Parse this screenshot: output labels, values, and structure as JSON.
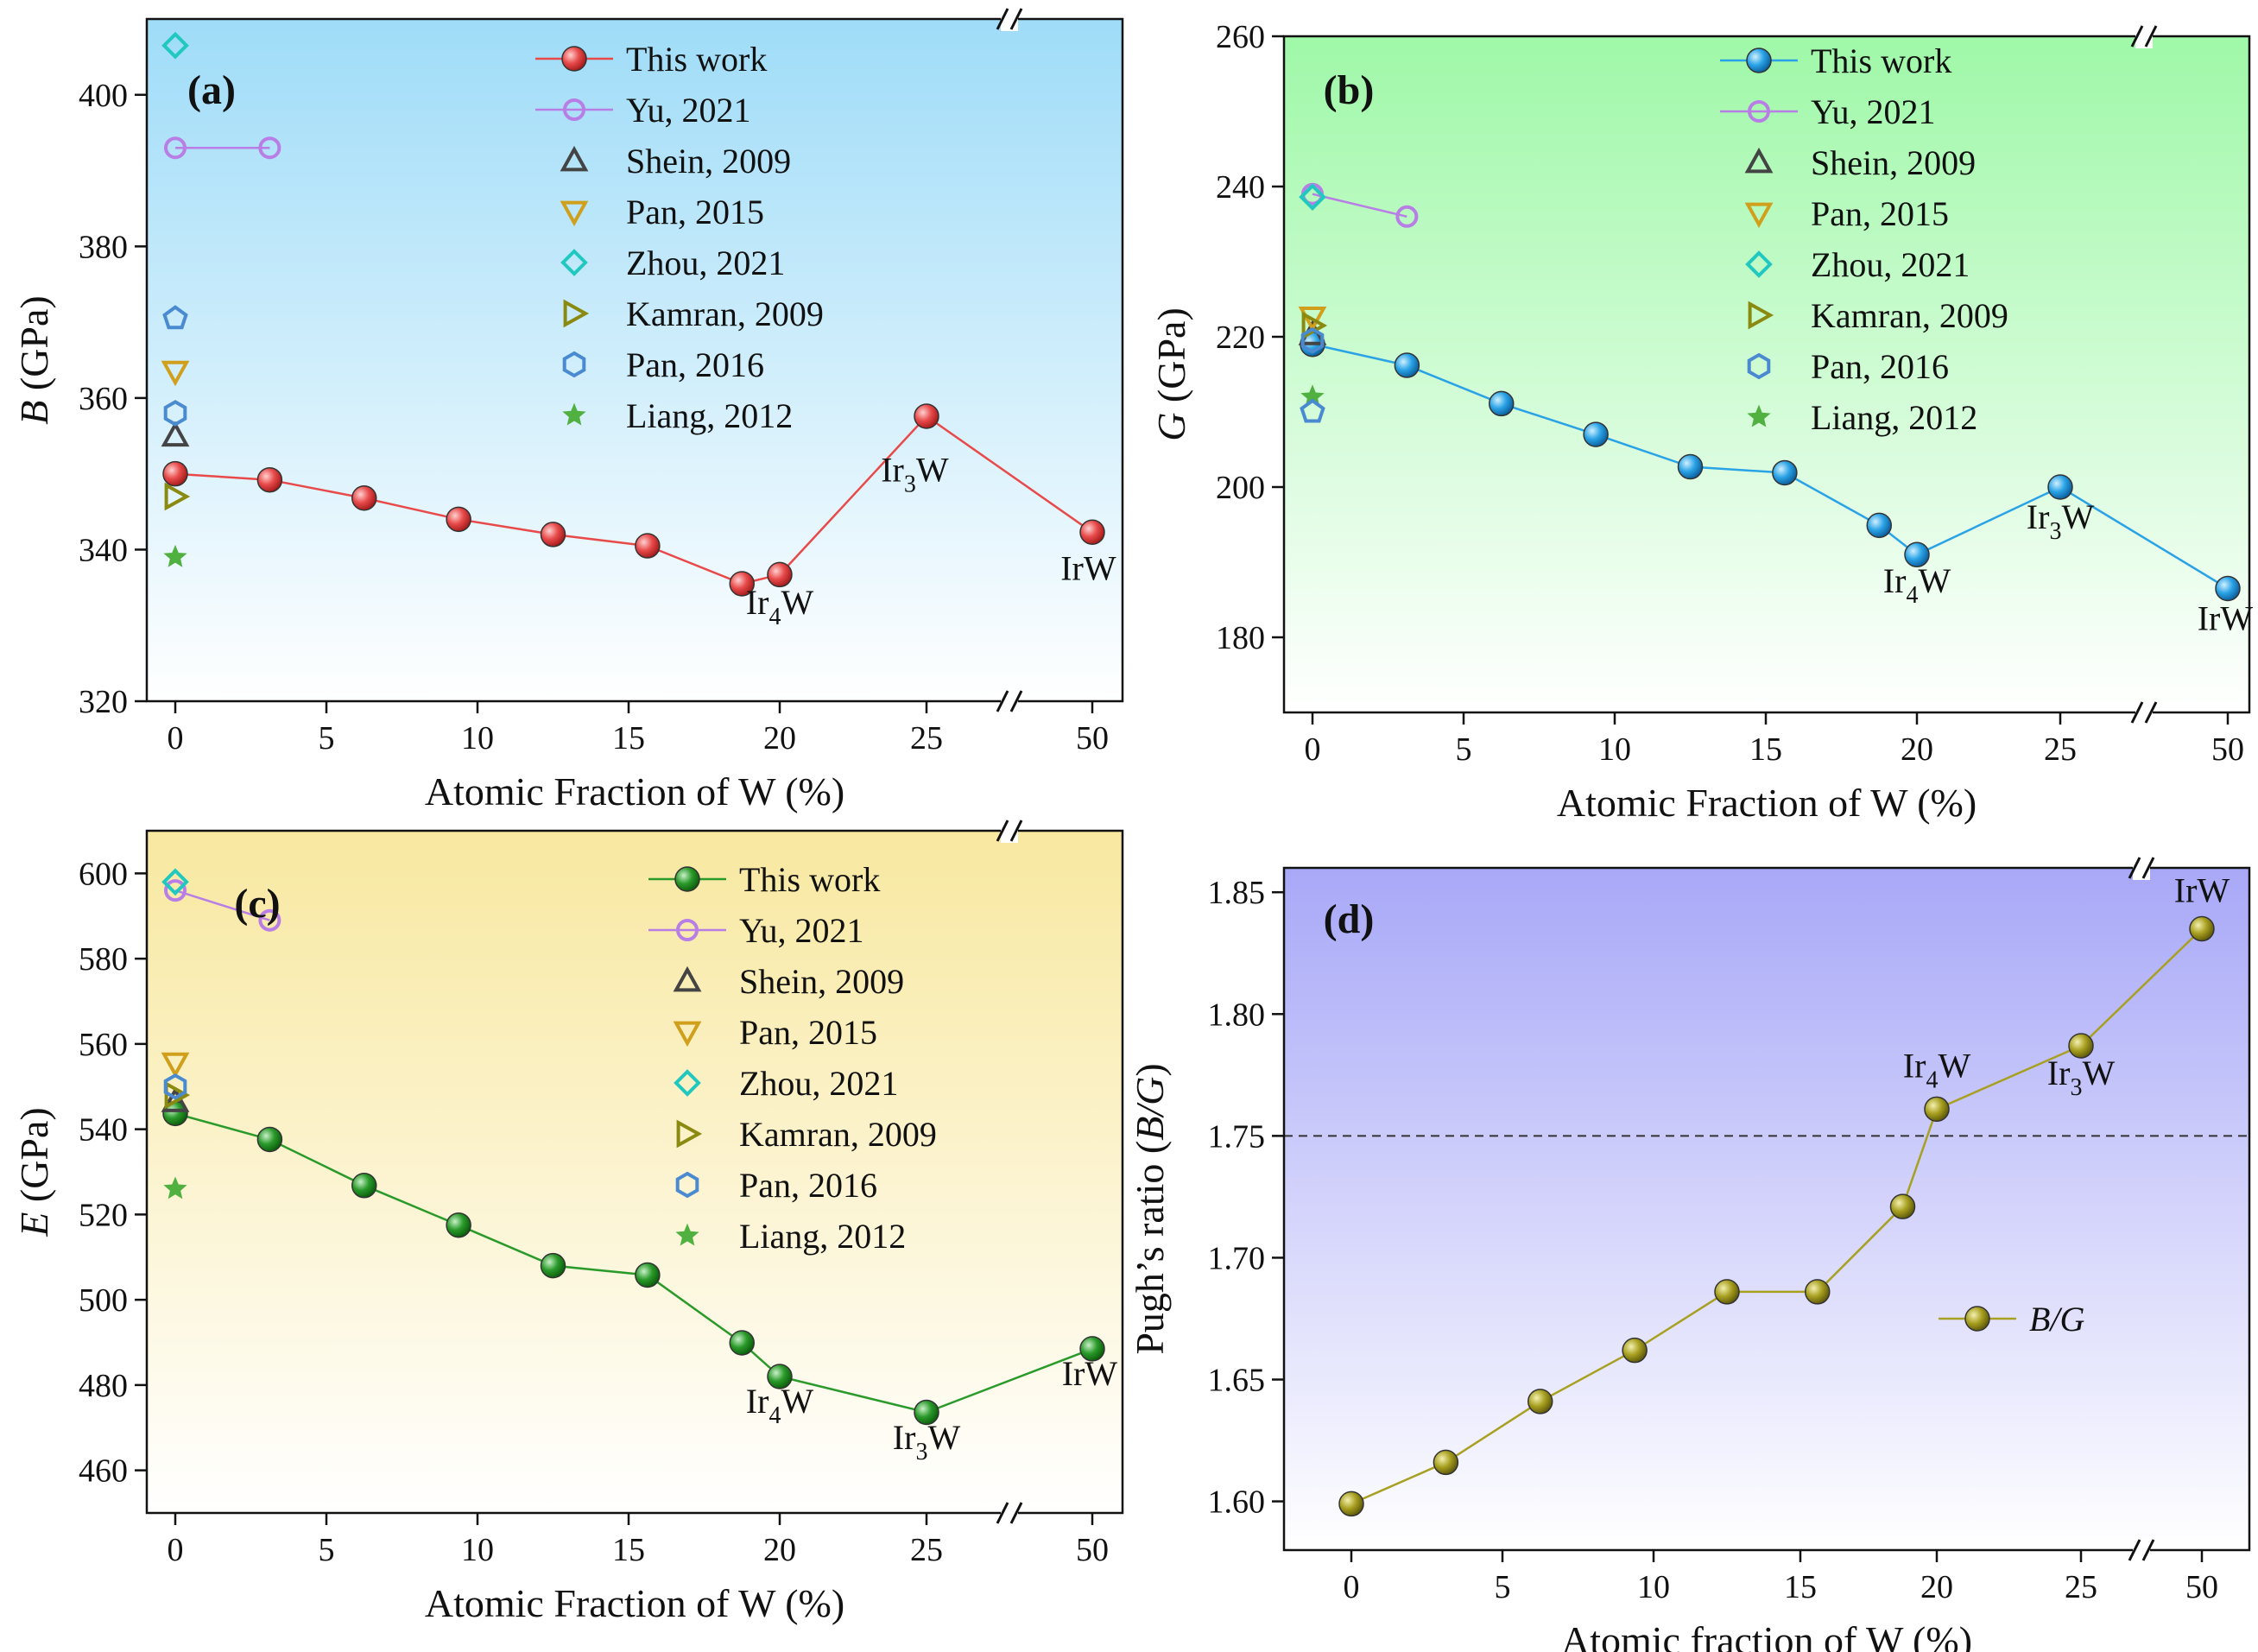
{
  "colors": {
    "work_a": "#e84a4a",
    "work_b": "#2aa3e6",
    "work_c": "#2a9a2a",
    "work_d": "#a8a020",
    "yu": "#b87ee6",
    "shein": "#444444",
    "pan2015": "#d0a01c",
    "zhou": "#20c8c0",
    "kamran": "#8a8a10",
    "pan2016": "#4a8ad0",
    "liang": "#50b040",
    "bg_a_top": "#9fdcf8",
    "bg_b_top": "#9ff8a8",
    "bg_c_top": "#f8e8a0",
    "bg_d_top": "#a8a8f8"
  },
  "chart_data": [
    {
      "id": "a",
      "type": "line",
      "panel_label": "(a)",
      "ylabel_sym": "B",
      "ylabel_unit": " (GPa)",
      "xlabel": "Atomic Fraction of W (%)",
      "x_ticks": [
        "0",
        "5",
        "10",
        "15",
        "20",
        "25",
        "50"
      ],
      "y_ticks": [
        "320",
        "340",
        "360",
        "380",
        "400"
      ],
      "ylim": [
        320,
        410
      ],
      "series": [
        {
          "name": "This work",
          "marker": "sphere",
          "x": [
            0,
            3.125,
            6.25,
            9.375,
            12.5,
            15.625,
            18.75,
            20,
            25,
            50
          ],
          "y": [
            350,
            349.2,
            346.8,
            344,
            342,
            340.5,
            335.5,
            336.7,
            357.6,
            342.3
          ]
        },
        {
          "name": "Yu, 2021",
          "marker": "circle",
          "x": [
            0,
            3.125
          ],
          "y": [
            393,
            393
          ]
        },
        {
          "name": "Shein, 2009",
          "marker": "triangle-up",
          "x": [
            0
          ],
          "y": [
            355
          ]
        },
        {
          "name": "Pan, 2015",
          "marker": "triangle-down",
          "x": [
            0
          ],
          "y": [
            363.5
          ]
        },
        {
          "name": "Zhou, 2021",
          "marker": "diamond",
          "x": [
            0
          ],
          "y": [
            406.5
          ]
        },
        {
          "name": "Kamran, 2009",
          "marker": "triangle-right",
          "x": [
            0
          ],
          "y": [
            347
          ]
        },
        {
          "name": "Pan, 2016",
          "marker": "hexagon",
          "x": [
            0
          ],
          "y": [
            358
          ]
        },
        {
          "name": "Liang, 2012",
          "marker": "star",
          "x": [
            0
          ],
          "y": [
            339
          ]
        },
        {
          "name": "",
          "marker": "pentagon",
          "x": [
            0
          ],
          "y": [
            370.5
          ]
        }
      ],
      "annotations": [
        {
          "main": "Ir",
          "sub": "4",
          "tail": "W",
          "x": 20,
          "y": 331.5
        },
        {
          "main": "Ir",
          "sub": "3",
          "tail": "W",
          "x": 24.6,
          "y": 349
        },
        {
          "main": "IrW",
          "sub": "",
          "tail": "",
          "x": 49.4,
          "y": 336
        }
      ]
    },
    {
      "id": "b",
      "type": "line",
      "panel_label": "(b)",
      "ylabel_sym": "G",
      "ylabel_unit": " (GPa)",
      "xlabel": "Atomic Fraction of W (%)",
      "x_ticks": [
        "0",
        "5",
        "10",
        "15",
        "20",
        "25",
        "50"
      ],
      "y_ticks": [
        "180",
        "200",
        "220",
        "240",
        "260"
      ],
      "ylim": [
        170,
        260
      ],
      "series": [
        {
          "name": "This work",
          "marker": "sphere",
          "x": [
            0,
            3.125,
            6.25,
            9.375,
            12.5,
            15.625,
            18.75,
            20,
            25,
            50
          ],
          "y": [
            219,
            216.2,
            211.1,
            207,
            202.7,
            201.9,
            194.9,
            191,
            200,
            186.5
          ]
        },
        {
          "name": "Yu, 2021",
          "marker": "circle",
          "x": [
            0,
            3.125
          ],
          "y": [
            239,
            236
          ]
        },
        {
          "name": "Shein, 2009",
          "marker": "triangle-up",
          "x": [
            0
          ],
          "y": [
            220.3
          ]
        },
        {
          "name": "Pan, 2015",
          "marker": "triangle-down",
          "x": [
            0
          ],
          "y": [
            222.6
          ]
        },
        {
          "name": "Zhou, 2021",
          "marker": "diamond",
          "x": [
            0
          ],
          "y": [
            238.6
          ]
        },
        {
          "name": "Kamran, 2009",
          "marker": "triangle-right",
          "x": [
            0
          ],
          "y": [
            221.5
          ]
        },
        {
          "name": "Pan, 2016",
          "marker": "hexagon",
          "x": [
            0
          ],
          "y": [
            219.5
          ]
        },
        {
          "name": "Liang, 2012",
          "marker": "star",
          "x": [
            0
          ],
          "y": [
            212
          ]
        },
        {
          "name": "",
          "marker": "pentagon",
          "x": [
            0
          ],
          "y": [
            210
          ]
        }
      ],
      "annotations": [
        {
          "main": "Ir",
          "sub": "4",
          "tail": "W",
          "x": 20,
          "y": 186
        },
        {
          "main": "Ir",
          "sub": "3",
          "tail": "W",
          "x": 25,
          "y": 194.5
        },
        {
          "main": "IrW",
          "sub": "",
          "tail": "",
          "x": 49.6,
          "y": 181
        }
      ]
    },
    {
      "id": "c",
      "type": "line",
      "panel_label": "(c)",
      "ylabel_sym": "E",
      "ylabel_unit": " (GPa)",
      "xlabel": "Atomic Fraction of W (%)",
      "x_ticks": [
        "0",
        "5",
        "10",
        "15",
        "20",
        "25",
        "50"
      ],
      "y_ticks": [
        "460",
        "480",
        "500",
        "520",
        "540",
        "560",
        "580",
        "600"
      ],
      "ylim": [
        450,
        610
      ],
      "series": [
        {
          "name": "This work",
          "marker": "sphere",
          "x": [
            0,
            3.125,
            6.25,
            9.375,
            12.5,
            15.625,
            18.75,
            20,
            25,
            50
          ],
          "y": [
            543.7,
            537.6,
            526.8,
            517.5,
            508,
            505.8,
            489.9,
            482,
            473.6,
            488.5
          ]
        },
        {
          "name": "Yu, 2021",
          "marker": "circle",
          "x": [
            0,
            3.125
          ],
          "y": [
            596,
            589
          ]
        },
        {
          "name": "Shein, 2009",
          "marker": "triangle-up",
          "x": [
            0
          ],
          "y": [
            546.5
          ]
        },
        {
          "name": "Pan, 2015",
          "marker": "triangle-down",
          "x": [
            0
          ],
          "y": [
            555.5
          ]
        },
        {
          "name": "Zhou, 2021",
          "marker": "diamond",
          "x": [
            0
          ],
          "y": [
            598
          ]
        },
        {
          "name": "Kamran, 2009",
          "marker": "triangle-right",
          "x": [
            0
          ],
          "y": [
            548
          ]
        },
        {
          "name": "Pan, 2016",
          "marker": "hexagon",
          "x": [
            0
          ],
          "y": [
            550
          ]
        },
        {
          "name": "Liang, 2012",
          "marker": "star",
          "x": [
            0
          ],
          "y": [
            526
          ]
        }
      ],
      "annotations": [
        {
          "main": "Ir",
          "sub": "4",
          "tail": "W",
          "x": 20,
          "y": 473.5
        },
        {
          "main": "Ir",
          "sub": "3",
          "tail": "W",
          "x": 25,
          "y": 465
        },
        {
          "main": "IrW",
          "sub": "",
          "tail": "",
          "x": 49.6,
          "y": 480
        }
      ]
    },
    {
      "id": "d",
      "type": "line",
      "panel_label": "(d)",
      "ylabel_pre": "Pugh’s ratio (",
      "ylabel_sym": "B/G",
      "ylabel_unit": ")",
      "xlabel": "Atomic fraction of W (%)",
      "x_ticks": [
        "0",
        "5",
        "10",
        "15",
        "20",
        "25",
        "50"
      ],
      "y_ticks": [
        "1.60",
        "1.65",
        "1.70",
        "1.75",
        "1.80",
        "1.85"
      ],
      "ylim": [
        1.58,
        1.86
      ],
      "reference_line": 1.75,
      "series": [
        {
          "name": "B/G",
          "marker": "sphere",
          "x": [
            0,
            3.125,
            6.25,
            9.375,
            12.5,
            15.625,
            18.75,
            20,
            25,
            50
          ],
          "y": [
            1.599,
            1.616,
            1.641,
            1.662,
            1.686,
            1.686,
            1.721,
            1.761,
            1.787,
            1.835
          ]
        }
      ],
      "annotations": [
        {
          "main": "Ir",
          "sub": "4",
          "tail": "W",
          "x": 20,
          "y": 1.774
        },
        {
          "main": "Ir",
          "sub": "3",
          "tail": "W",
          "x": 25,
          "y": 1.771
        },
        {
          "main": "IrW",
          "sub": "",
          "tail": "",
          "x": 50,
          "y": 1.846
        }
      ]
    }
  ]
}
